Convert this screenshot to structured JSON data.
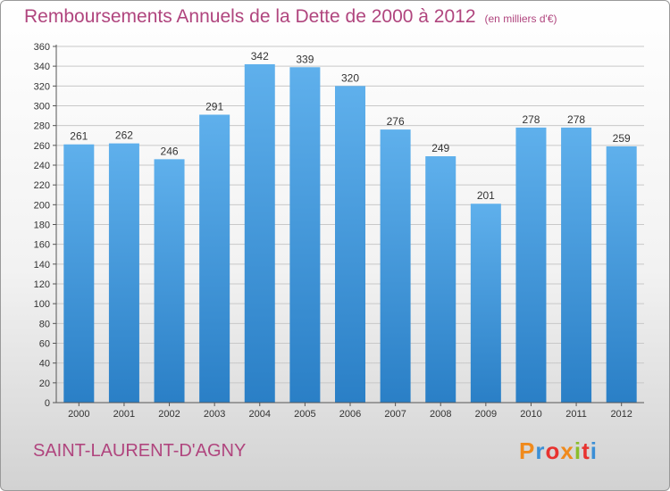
{
  "header": {
    "title": "Remboursements Annuels de la Dette de 2000 à 2012",
    "unit": "(en milliers d'€)"
  },
  "footer": {
    "commune": "SAINT-LAURENT-D'AGNY",
    "logo": "Proxiti",
    "logo_colors": [
      "#f08a1c",
      "#3b8fd6",
      "#e8322f",
      "#f08a1c",
      "#8bbd2b",
      "#e8322f",
      "#3b8fd6"
    ]
  },
  "colors": {
    "title": "#b0457e",
    "bar_top": "#5fb0ec",
    "bar_bottom": "#2a7fc6",
    "grid": "#c8c8c8"
  },
  "chart_data": {
    "type": "bar",
    "title": "Remboursements Annuels de la Dette de 2000 à 2012",
    "xlabel": "",
    "ylabel": "",
    "categories": [
      "2000",
      "2001",
      "2002",
      "2003",
      "2004",
      "2005",
      "2006",
      "2007",
      "2008",
      "2009",
      "2010",
      "2011",
      "2012"
    ],
    "values": [
      261,
      262,
      246,
      291,
      342,
      339,
      320,
      276,
      249,
      201,
      278,
      278,
      259
    ],
    "ylim": [
      0,
      360
    ],
    "yticks": [
      0,
      20,
      40,
      60,
      80,
      100,
      120,
      140,
      160,
      180,
      200,
      220,
      240,
      260,
      280,
      300,
      320,
      340,
      360
    ],
    "grid": true,
    "legend": "none"
  }
}
